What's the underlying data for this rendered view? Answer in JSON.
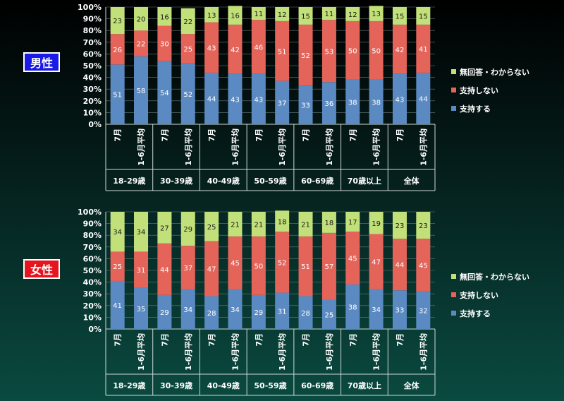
{
  "colors": {
    "support": "#5b8ac2",
    "not_support": "#e4645a",
    "dont_know": "#c2e07a",
    "text": "#ffffff",
    "label_dark": "#1a1a1a"
  },
  "badges": {
    "male": "男性",
    "female": "女性"
  },
  "chart_data": [
    {
      "type": "bar",
      "stacked": true,
      "title": "",
      "ylim": [
        0,
        100
      ],
      "yticks": [
        "0%",
        "10%",
        "20%",
        "30%",
        "40%",
        "50%",
        "60%",
        "70%",
        "80%",
        "90%",
        "100%"
      ],
      "groups": [
        "18-29歳",
        "30-39歳",
        "40-49歳",
        "50-59歳",
        "60-69歳",
        "70歳以上",
        "全体"
      ],
      "subcategories": [
        "7月",
        "1-6月平均"
      ],
      "series": [
        {
          "name": "支持する",
          "values": [
            51,
            58,
            54,
            52,
            44,
            43,
            43,
            37,
            33,
            36,
            38,
            38,
            43,
            44
          ]
        },
        {
          "name": "支持しない",
          "values": [
            26,
            22,
            30,
            25,
            43,
            42,
            46,
            51,
            52,
            53,
            50,
            50,
            42,
            41
          ]
        },
        {
          "name": "無回答・わからない",
          "values": [
            23,
            20,
            16,
            22,
            13,
            16,
            11,
            12,
            15,
            11,
            12,
            13,
            15,
            15
          ]
        }
      ],
      "legend": [
        "無回答・わからない",
        "支持しない",
        "支持する"
      ],
      "legend_position": "right"
    },
    {
      "type": "bar",
      "stacked": true,
      "title": "",
      "ylim": [
        0,
        100
      ],
      "yticks": [
        "0%",
        "10%",
        "20%",
        "30%",
        "40%",
        "50%",
        "60%",
        "70%",
        "80%",
        "90%",
        "100%"
      ],
      "groups": [
        "18-29歳",
        "30-39歳",
        "40-49歳",
        "50-59歳",
        "60-69歳",
        "70歳以上",
        "全体"
      ],
      "subcategories": [
        "7月",
        "1-6月平均"
      ],
      "series": [
        {
          "name": "支持する",
          "values": [
            41,
            35,
            29,
            34,
            28,
            34,
            29,
            31,
            28,
            25,
            38,
            34,
            33,
            32
          ]
        },
        {
          "name": "支持しない",
          "values": [
            25,
            31,
            44,
            37,
            47,
            45,
            50,
            52,
            51,
            57,
            45,
            47,
            44,
            45
          ]
        },
        {
          "name": "無回答・わからない",
          "values": [
            34,
            34,
            27,
            29,
            25,
            21,
            21,
            18,
            21,
            18,
            17,
            19,
            23,
            23
          ]
        }
      ],
      "legend": [
        "無回答・わからない",
        "支持しない",
        "支持する"
      ],
      "legend_position": "right"
    }
  ]
}
